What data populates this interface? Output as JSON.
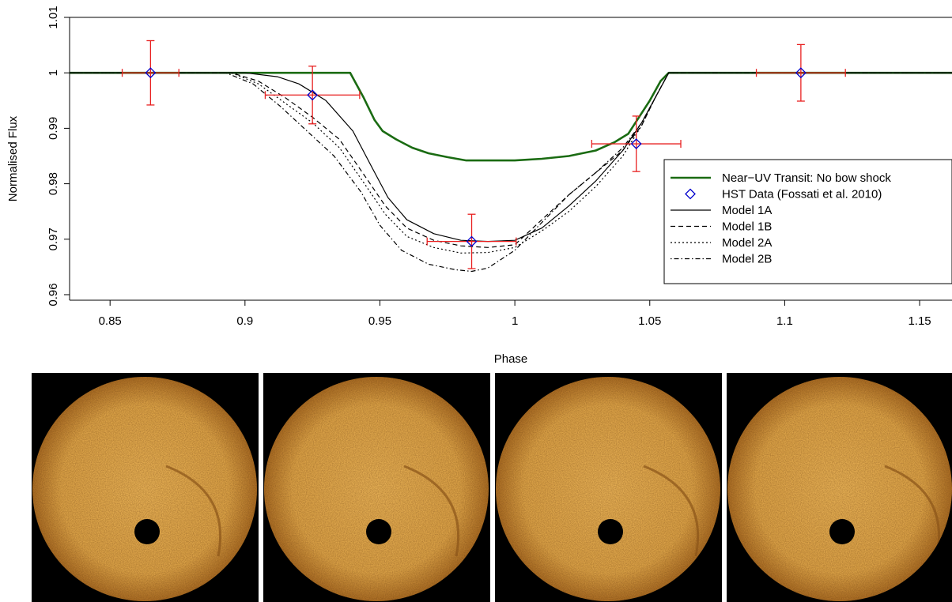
{
  "chart_data": {
    "type": "line",
    "xlabel": "Phase",
    "ylabel": "Normalised Flux",
    "xlim": [
      0.835,
      1.162
    ],
    "ylim": [
      0.959,
      1.01
    ],
    "x_ticks": [
      "0.85",
      "0.9",
      "0.95",
      "1",
      "1.05",
      "1.1",
      "1.15"
    ],
    "y_ticks": [
      "0.96",
      "0.97",
      "0.98",
      "0.99",
      "1",
      "1.01"
    ],
    "grid": false,
    "legend_position": "right",
    "legend": [
      "Near−UV Transit: No bow shock",
      "HST Data (Fossati et al. 2010)",
      "Model 1A",
      "Model 1B",
      "Model 2A",
      "Model 2B"
    ],
    "series": [
      {
        "name": "Near−UV Transit: No bow shock",
        "color": "#1a6b12",
        "style": "solid-thick",
        "x": [
          0.835,
          0.9,
          0.939,
          0.944,
          0.948,
          0.951,
          0.956,
          0.962,
          0.968,
          0.975,
          0.982,
          0.99,
          1.0,
          1.01,
          1.02,
          1.03,
          1.037,
          1.042,
          1.046,
          1.05,
          1.054,
          1.057,
          1.07,
          1.1,
          1.162
        ],
        "y": [
          1.0,
          1.0,
          1.0,
          0.9955,
          0.9915,
          0.9895,
          0.988,
          0.9865,
          0.9855,
          0.9848,
          0.9842,
          0.9842,
          0.9842,
          0.9845,
          0.985,
          0.986,
          0.9875,
          0.989,
          0.992,
          0.995,
          0.9985,
          1.0,
          1.0,
          1.0,
          1.0
        ]
      },
      {
        "name": "Model 1A",
        "color": "#000000",
        "style": "solid",
        "x": [
          0.835,
          0.9,
          0.912,
          0.92,
          0.93,
          0.94,
          0.947,
          0.953,
          0.96,
          0.97,
          0.98,
          0.99,
          1.0,
          1.01,
          1.02,
          1.03,
          1.04,
          1.047,
          1.052,
          1.057,
          1.162
        ],
        "y": [
          1.0,
          1.0,
          0.9993,
          0.998,
          0.995,
          0.9895,
          0.983,
          0.9775,
          0.9735,
          0.971,
          0.9698,
          0.9696,
          0.9698,
          0.972,
          0.976,
          0.9805,
          0.986,
          0.991,
          0.9955,
          1.0,
          1.0
        ]
      },
      {
        "name": "Model 1B",
        "color": "#000000",
        "style": "dashed",
        "x": [
          0.835,
          0.895,
          0.905,
          0.915,
          0.925,
          0.935,
          0.945,
          0.952,
          0.96,
          0.97,
          0.98,
          0.99,
          1.0,
          1.01,
          1.02,
          1.03,
          1.04,
          1.047,
          1.052,
          1.057,
          1.162
        ],
        "y": [
          1.0,
          1.0,
          0.9985,
          0.9955,
          0.992,
          0.988,
          0.981,
          0.976,
          0.972,
          0.9698,
          0.9688,
          0.9685,
          0.969,
          0.9735,
          0.978,
          0.982,
          0.986,
          0.9905,
          0.9955,
          1.0,
          1.0
        ]
      },
      {
        "name": "Model 2A",
        "color": "#000000",
        "style": "dotted",
        "x": [
          0.835,
          0.895,
          0.905,
          0.915,
          0.925,
          0.935,
          0.945,
          0.952,
          0.96,
          0.97,
          0.98,
          0.99,
          1.0,
          1.01,
          1.02,
          1.03,
          1.04,
          1.047,
          1.052,
          1.057,
          1.162
        ],
        "y": [
          1.0,
          1.0,
          0.998,
          0.9945,
          0.991,
          0.9865,
          0.9795,
          0.9745,
          0.9705,
          0.9685,
          0.9675,
          0.9676,
          0.9685,
          0.9715,
          0.975,
          0.9795,
          0.985,
          0.9905,
          0.9955,
          1.0,
          1.0
        ]
      },
      {
        "name": "Model 2B",
        "color": "#000000",
        "style": "dotdash",
        "x": [
          0.835,
          0.893,
          0.903,
          0.913,
          0.923,
          0.933,
          0.943,
          0.95,
          0.958,
          0.968,
          0.978,
          0.984,
          0.99,
          1.0,
          1.01,
          1.02,
          1.03,
          1.04,
          1.047,
          1.052,
          1.057,
          1.162
        ],
        "y": [
          1.0,
          1.0,
          0.998,
          0.994,
          0.9895,
          0.985,
          0.9785,
          0.9725,
          0.968,
          0.9655,
          0.9645,
          0.9642,
          0.9648,
          0.968,
          0.973,
          0.978,
          0.982,
          0.9865,
          0.991,
          0.9955,
          1.0,
          1.0
        ]
      }
    ],
    "hst_data": {
      "name": "HST Data (Fossati et al. 2010)",
      "marker_color": "#0000cc",
      "errorbar_color": "#e82020",
      "points": [
        {
          "x": 0.865,
          "y": 1.0,
          "xerr": 0.0105,
          "yerr": 0.0058
        },
        {
          "x": 0.925,
          "y": 0.996,
          "xerr": 0.0175,
          "yerr": 0.0052
        },
        {
          "x": 0.984,
          "y": 0.9696,
          "xerr": 0.0165,
          "yerr": 0.0049
        },
        {
          "x": 1.045,
          "y": 0.9872,
          "xerr": 0.0165,
          "yerr": 0.005
        },
        {
          "x": 1.106,
          "y": 1.0,
          "xerr": 0.0165,
          "yerr": 0.0051
        }
      ]
    }
  },
  "panels": {
    "disk_color": "#d9a047",
    "background_color": "#000000",
    "items": [
      {
        "name": "transit-frame-1"
      },
      {
        "name": "transit-frame-2"
      },
      {
        "name": "transit-frame-3"
      },
      {
        "name": "transit-frame-4"
      }
    ]
  }
}
